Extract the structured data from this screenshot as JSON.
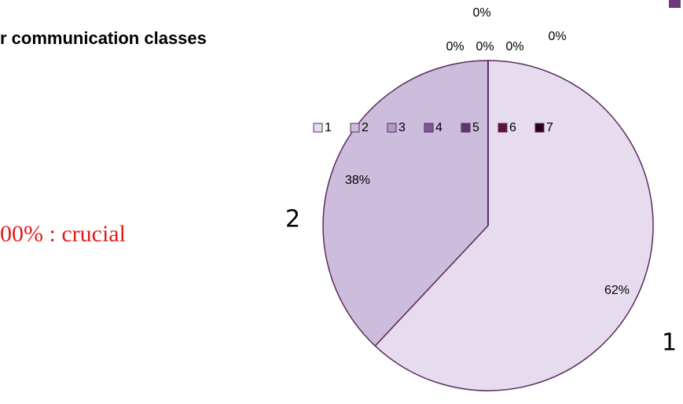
{
  "chart_data": {
    "type": "pie",
    "title": "r communication classes",
    "categories": [
      "1",
      "2",
      "3",
      "4",
      "5",
      "6",
      "7"
    ],
    "values": [
      62,
      38,
      0,
      0,
      0,
      0,
      0
    ],
    "value_labels": [
      "62%",
      "38%",
      "0%",
      "0%",
      "0%",
      "0%",
      "0%"
    ],
    "colors": [
      "#e6dcee",
      "#cbbddb",
      "#b09ac6",
      "#7a5890",
      "#5a3a6c",
      "#5e0f3c",
      "#2a0016"
    ],
    "legend": "top",
    "annotations": [
      "00% : crucial",
      "2",
      "1"
    ]
  }
}
